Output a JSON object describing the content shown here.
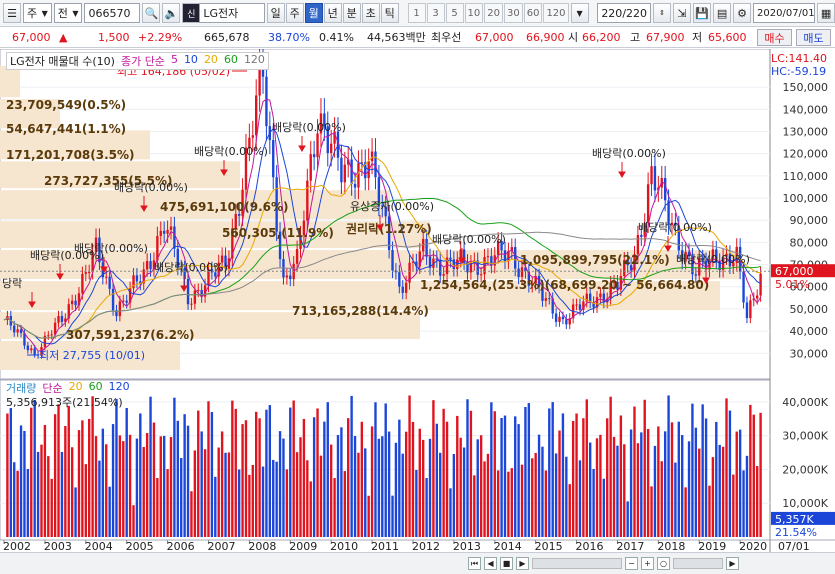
{
  "toolbar": {
    "market_label": "주",
    "type_label": "전",
    "stock_code": "066570",
    "stock_name": "LG전자",
    "period_buttons": [
      "일",
      "주",
      "월",
      "년",
      "분",
      "초",
      "틱"
    ],
    "selected_period": "월",
    "interval_buttons": [
      "1",
      "3",
      "5",
      "10",
      "20",
      "30",
      "60",
      "120"
    ],
    "count_display": "220",
    "count_total": "/220",
    "date_value": "2020/07/01"
  },
  "quote": {
    "price": "67,000",
    "change_arrow": "▲",
    "change": "1,500",
    "change_pct": "+2.29%",
    "volume": "665,678",
    "volume_ratio": "38.70%",
    "turnover": "0.41%",
    "amount": "44,563백만",
    "best_label": "최우선",
    "best_ask": "67,000",
    "best_bid": "66,900",
    "open_label": "시",
    "open": "66,200",
    "high_label": "고",
    "high": "67,900",
    "low_label": "저",
    "low": "65,600",
    "buy_button": "매수",
    "sell_button": "매도"
  },
  "price_panel": {
    "title": "LG전자 매물대 수(10)",
    "legend_label": "종가 단순",
    "ma_periods": [
      "5",
      "10",
      "20",
      "60",
      "120"
    ],
    "ma_colors": [
      "#c0189c",
      "#1b46d8",
      "#e8a800",
      "#18a018",
      "#777777"
    ],
    "lc_label": "LC:141.40",
    "hc_label": "HC:-59.19",
    "current_price_tag": "67,000",
    "current_pct_tag": "5.01%",
    "y_ticks": [
      "150,000",
      "140,000",
      "130,000",
      "120,000",
      "110,000",
      "100,000",
      "90,000",
      "80,000",
      "70,000",
      "60,000",
      "50,000",
      "40,000",
      "30,000"
    ],
    "high_annotation": "최고 164,186 (05/02)",
    "low_annotation": "최저 27,755 (10/01)",
    "volume_profile_labels": [
      "23,709,549(0.5%)",
      "54,647,441(1.1%)",
      "171,201,708(3.5%)",
      "273,727,355(5.5%)",
      "475,691,100(9.6%)",
      "560,305,(11.9%)",
      "권리락(1.27%)",
      "1,095,899,795(22.1%)",
      "1,254,564,(25.3%)(68,699.20 ~ 56,664.80)",
      "713,165,288(14.4%)",
      "307,591,237(6.2%)"
    ],
    "event_labels": [
      "배당락(0.00%)",
      "배당락(0.00%)",
      "배당락(0.00%)",
      "유상증자(0.00%)",
      "배당락(0.00%)",
      "배당락(0.00%)",
      "배당락(0.00%)",
      "배당락(0.00%)",
      "배당락(0.00%)",
      "배당락(0.00%)",
      "배당락(0.00%)",
      "당락"
    ]
  },
  "volume_panel": {
    "title": "거래량",
    "legend_label": "단순",
    "ma_periods": [
      "5",
      "20",
      "60",
      "120"
    ],
    "summary": "5,356,913주(21.54%)",
    "y_ticks": [
      "40,000K",
      "30,000K",
      "20,000K",
      "10,000K"
    ],
    "current_tag": "5,357K",
    "current_pct": "21.54%"
  },
  "x_axis": {
    "years": [
      "2002",
      "2003",
      "2004",
      "2005",
      "2006",
      "2007",
      "2008",
      "2009",
      "2010",
      "2011",
      "2012",
      "2013",
      "2014",
      "2015",
      "2016",
      "2017",
      "2018",
      "2019",
      "2020"
    ],
    "last_label": "07/01"
  },
  "colors": {
    "up": "#e0141e",
    "down": "#1b46d8",
    "profile": "#f7e6cf",
    "accent": "#2f64c8"
  },
  "chart_data": {
    "type": "candlestick",
    "title": "LG전자 매물대 수(10)",
    "x_unit": "monthly",
    "x_range": [
      "2002/01",
      "2020/07"
    ],
    "ylim": [
      22000,
      160000
    ],
    "annotations": [
      {
        "label": "최고",
        "value": 164186,
        "date": "05/02"
      },
      {
        "label": "최저",
        "value": 27755,
        "date": "10/01"
      }
    ],
    "price_anchors": [
      {
        "x": "2002/01",
        "close": 45000
      },
      {
        "x": "2002/10",
        "close": 30000
      },
      {
        "x": "2003/06",
        "close": 45000
      },
      {
        "x": "2004/04",
        "close": 75000
      },
      {
        "x": "2004/10",
        "close": 50000
      },
      {
        "x": "2005/06",
        "close": 65000
      },
      {
        "x": "2005/12",
        "close": 90000
      },
      {
        "x": "2006/07",
        "close": 55000
      },
      {
        "x": "2007/06",
        "close": 70000
      },
      {
        "x": "2008/05",
        "close": 155000
      },
      {
        "x": "2008/11",
        "close": 62000
      },
      {
        "x": "2009/03",
        "close": 70000
      },
      {
        "x": "2009/09",
        "close": 140000
      },
      {
        "x": "2010/04",
        "close": 110000
      },
      {
        "x": "2010/12",
        "close": 118000
      },
      {
        "x": "2011/09",
        "close": 60000
      },
      {
        "x": "2012/04",
        "close": 75000
      },
      {
        "x": "2012/10",
        "close": 70000
      },
      {
        "x": "2013/06",
        "close": 70000
      },
      {
        "x": "2014/06",
        "close": 75000
      },
      {
        "x": "2015/03",
        "close": 55000
      },
      {
        "x": "2015/09",
        "close": 45000
      },
      {
        "x": "2016/06",
        "close": 55000
      },
      {
        "x": "2017/01",
        "close": 60000
      },
      {
        "x": "2017/06",
        "close": 75000
      },
      {
        "x": "2017/11",
        "close": 110000
      },
      {
        "x": "2018/06",
        "close": 85000
      },
      {
        "x": "2018/12",
        "close": 65000
      },
      {
        "x": "2019/06",
        "close": 75000
      },
      {
        "x": "2019/12",
        "close": 72000
      },
      {
        "x": "2020/03",
        "close": 45000
      },
      {
        "x": "2020/07",
        "close": 67000
      }
    ],
    "volume_ylim": [
      0,
      45000
    ]
  }
}
